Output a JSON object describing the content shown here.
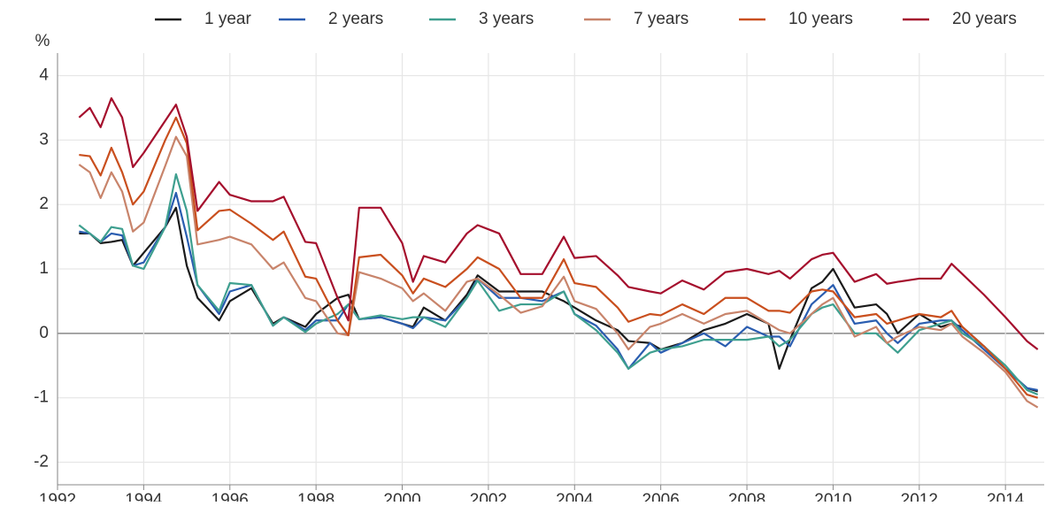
{
  "chart_data": {
    "type": "line",
    "y_label": "%",
    "x": [
      1992.5,
      1992.75,
      1993,
      1993.25,
      1993.5,
      1993.75,
      1994,
      1994.5,
      1994.75,
      1995,
      1995.25,
      1995.75,
      1996,
      1996.5,
      1997,
      1997.25,
      1997.75,
      1998,
      1998.5,
      1998.75,
      1999,
      1999.5,
      2000,
      2000.25,
      2000.5,
      2001,
      2001.5,
      2001.75,
      2002.25,
      2002.75,
      2003.25,
      2003.75,
      2004,
      2004.5,
      2005,
      2005.25,
      2005.75,
      2006,
      2006.5,
      2007,
      2007.5,
      2008,
      2008.5,
      2008.75,
      2009,
      2009.5,
      2009.75,
      2010,
      2010.5,
      2011,
      2011.25,
      2011.5,
      2012,
      2012.5,
      2012.75,
      2013,
      2013.5,
      2014,
      2014.5,
      2014.75
    ],
    "series": [
      {
        "name": "1 year",
        "color": "#1a1a1a",
        "values": [
          1.55,
          1.55,
          1.4,
          1.42,
          1.45,
          1.05,
          1.25,
          1.65,
          1.95,
          1.05,
          0.55,
          0.2,
          0.5,
          0.7,
          0.15,
          0.25,
          0.1,
          0.3,
          0.55,
          0.6,
          0.22,
          0.25,
          0.15,
          0.1,
          0.4,
          0.2,
          0.6,
          0.9,
          0.65,
          0.65,
          0.65,
          0.5,
          0.4,
          0.2,
          0.05,
          -0.12,
          -0.15,
          -0.25,
          -0.15,
          0.05,
          0.15,
          0.3,
          0.15,
          -0.55,
          -0.1,
          0.7,
          0.8,
          1.0,
          0.4,
          0.45,
          0.3,
          0.0,
          0.3,
          0.1,
          0.15,
          0.1,
          -0.2,
          -0.55,
          -0.85,
          -0.9
        ]
      },
      {
        "name": "2 years",
        "color": "#2a5db0",
        "values": [
          1.58,
          1.55,
          1.42,
          1.55,
          1.52,
          1.05,
          1.1,
          1.65,
          2.18,
          1.5,
          0.75,
          0.3,
          0.65,
          0.75,
          0.12,
          0.25,
          0.05,
          0.2,
          0.2,
          0.45,
          0.22,
          0.25,
          0.15,
          0.08,
          0.25,
          0.2,
          0.55,
          0.85,
          0.55,
          0.55,
          0.5,
          0.65,
          0.3,
          0.12,
          -0.25,
          -0.55,
          -0.15,
          -0.3,
          -0.15,
          0.0,
          -0.2,
          0.1,
          -0.05,
          -0.05,
          -0.2,
          0.45,
          0.6,
          0.75,
          0.15,
          0.2,
          0.0,
          -0.15,
          0.15,
          0.2,
          0.2,
          0.05,
          -0.25,
          -0.55,
          -0.85,
          -0.88
        ]
      },
      {
        "name": "3 years",
        "color": "#3e9f8f",
        "values": [
          1.68,
          1.55,
          1.42,
          1.65,
          1.62,
          1.05,
          1.0,
          1.65,
          2.47,
          1.9,
          0.75,
          0.35,
          0.78,
          0.75,
          0.12,
          0.25,
          0.02,
          0.15,
          0.3,
          0.45,
          0.22,
          0.28,
          0.22,
          0.25,
          0.25,
          0.1,
          0.55,
          0.82,
          0.35,
          0.45,
          0.45,
          0.65,
          0.3,
          0.05,
          -0.3,
          -0.55,
          -0.3,
          -0.25,
          -0.2,
          -0.1,
          -0.1,
          -0.1,
          -0.05,
          -0.2,
          -0.1,
          0.3,
          0.4,
          0.45,
          0.0,
          0.0,
          -0.15,
          -0.3,
          0.05,
          0.15,
          0.2,
          0.0,
          -0.2,
          -0.5,
          -0.88,
          -0.95
        ]
      },
      {
        "name": "7 years",
        "color": "#c8846b",
        "values": [
          2.62,
          2.5,
          2.1,
          2.5,
          2.2,
          1.58,
          1.72,
          2.6,
          3.05,
          2.75,
          1.38,
          1.45,
          1.5,
          1.38,
          1.0,
          1.1,
          0.55,
          0.5,
          0.0,
          -0.03,
          0.95,
          0.85,
          0.7,
          0.5,
          0.62,
          0.35,
          0.8,
          0.85,
          0.6,
          0.32,
          0.42,
          0.88,
          0.5,
          0.38,
          0.0,
          -0.25,
          0.1,
          0.15,
          0.3,
          0.15,
          0.3,
          0.35,
          0.15,
          0.05,
          0.0,
          0.3,
          0.45,
          0.55,
          -0.05,
          0.1,
          -0.15,
          -0.05,
          0.1,
          0.05,
          0.15,
          -0.05,
          -0.3,
          -0.6,
          -1.05,
          -1.15
        ]
      },
      {
        "name": "10 years",
        "color": "#c94f1e",
        "values": [
          2.77,
          2.75,
          2.45,
          2.88,
          2.5,
          2.0,
          2.2,
          3.0,
          3.35,
          2.95,
          1.6,
          1.9,
          1.92,
          1.7,
          1.45,
          1.58,
          0.88,
          0.85,
          0.2,
          -0.03,
          1.18,
          1.22,
          0.9,
          0.62,
          0.85,
          0.72,
          1.0,
          1.18,
          1.0,
          0.55,
          0.55,
          1.15,
          0.78,
          0.72,
          0.4,
          0.18,
          0.3,
          0.28,
          0.45,
          0.3,
          0.55,
          0.55,
          0.35,
          0.35,
          0.32,
          0.65,
          0.68,
          0.65,
          0.25,
          0.3,
          0.15,
          0.2,
          0.3,
          0.25,
          0.35,
          0.1,
          -0.2,
          -0.55,
          -0.95,
          -1.0
        ]
      },
      {
        "name": "20 years",
        "color": "#a50f2d",
        "values": [
          3.35,
          3.5,
          3.2,
          3.65,
          3.35,
          2.58,
          2.8,
          3.3,
          3.55,
          3.05,
          1.9,
          2.35,
          2.15,
          2.05,
          2.05,
          2.12,
          1.42,
          1.4,
          0.55,
          0.2,
          1.95,
          1.95,
          1.4,
          0.8,
          1.2,
          1.1,
          1.55,
          1.68,
          1.55,
          0.92,
          0.92,
          1.5,
          1.17,
          1.2,
          0.9,
          0.72,
          0.65,
          0.62,
          0.82,
          0.68,
          0.95,
          1.0,
          0.92,
          0.97,
          0.85,
          1.15,
          1.22,
          1.25,
          0.8,
          0.92,
          0.77,
          0.8,
          0.85,
          0.85,
          1.08,
          0.92,
          0.6,
          0.25,
          -0.12,
          -0.25
        ]
      }
    ],
    "xlim": [
      1992,
      2014.9
    ],
    "xticks": [
      1992,
      1994,
      1996,
      1998,
      2000,
      2002,
      2004,
      2006,
      2008,
      2010,
      2012,
      2014
    ],
    "ylim": [
      -2.35,
      4.35
    ],
    "yticks": [
      -2,
      -1,
      0,
      1,
      2,
      3,
      4
    ],
    "grid": true,
    "legend": "top"
  }
}
